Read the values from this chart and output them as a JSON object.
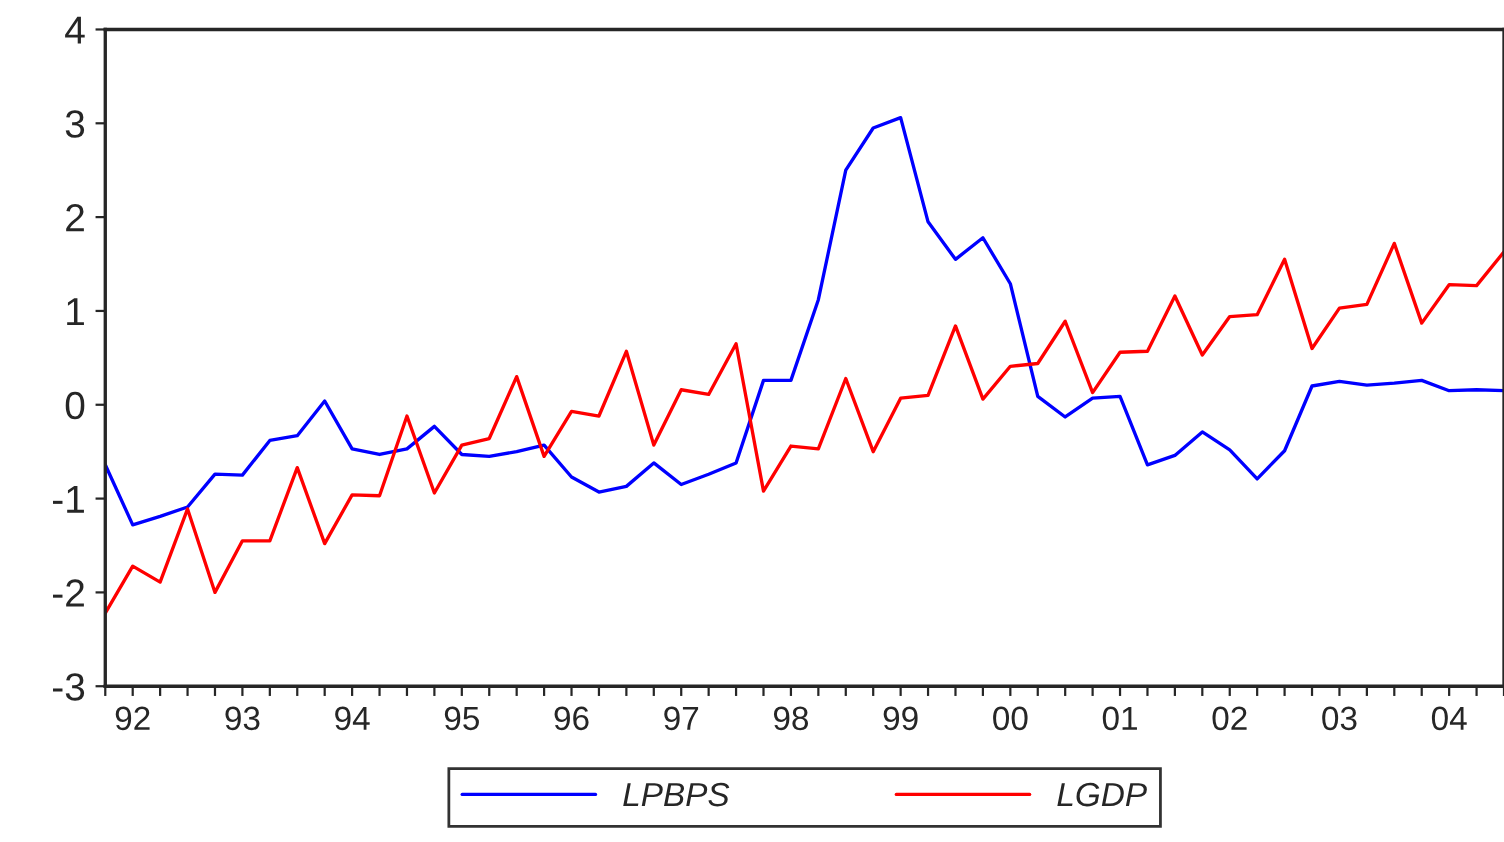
{
  "chart_data": {
    "type": "line",
    "categories": [
      null,
      "92",
      null,
      null,
      null,
      "93",
      null,
      null,
      null,
      "94",
      null,
      null,
      null,
      "95",
      null,
      null,
      null,
      "96",
      null,
      null,
      null,
      "97",
      null,
      null,
      null,
      "98",
      null,
      null,
      null,
      "99",
      null,
      null,
      null,
      "00",
      null,
      null,
      null,
      "01",
      null,
      null,
      null,
      "02",
      null,
      null,
      null,
      "03",
      null,
      null,
      null,
      "04",
      null,
      null
    ],
    "series": [
      {
        "name": "LPBPS",
        "color": "#0000ff",
        "values": [
          -0.64,
          -1.28,
          -1.19,
          -1.09,
          -0.74,
          -0.75,
          -0.38,
          -0.33,
          0.04,
          -0.47,
          -0.53,
          -0.47,
          -0.23,
          -0.53,
          -0.55,
          -0.5,
          -0.43,
          -0.77,
          -0.93,
          -0.87,
          -0.62,
          -0.85,
          -0.74,
          -0.62,
          0.26,
          0.26,
          1.12,
          2.5,
          2.95,
          3.06,
          1.95,
          1.55,
          1.78,
          1.29,
          0.09,
          -0.13,
          0.07,
          0.09,
          -0.64,
          -0.54,
          -0.29,
          -0.48,
          -0.79,
          -0.49,
          0.2,
          0.25,
          0.21,
          0.23,
          0.26,
          0.15,
          0.16,
          0.15
        ]
      },
      {
        "name": "LGDP",
        "color": "#ff0000",
        "values": [
          -2.22,
          -1.72,
          -1.89,
          -1.11,
          -2.0,
          -1.45,
          -1.45,
          -0.67,
          -1.48,
          -0.96,
          -0.97,
          -0.12,
          -0.94,
          -0.43,
          -0.36,
          0.3,
          -0.55,
          -0.07,
          -0.12,
          0.57,
          -0.43,
          0.16,
          0.11,
          0.65,
          -0.92,
          -0.44,
          -0.47,
          0.28,
          -0.5,
          0.07,
          0.1,
          0.84,
          0.06,
          0.41,
          0.44,
          0.89,
          0.13,
          0.56,
          0.57,
          1.16,
          0.53,
          0.94,
          0.96,
          1.55,
          0.6,
          1.03,
          1.07,
          1.72,
          0.87,
          1.28,
          1.27,
          1.63
        ]
      }
    ],
    "ylim": [
      -3,
      4
    ],
    "yticks": [
      -3,
      -2,
      -1,
      0,
      1,
      2,
      3,
      4
    ],
    "grid": false,
    "legend": "bottom",
    "marker": "none",
    "line_style": "solid"
  }
}
